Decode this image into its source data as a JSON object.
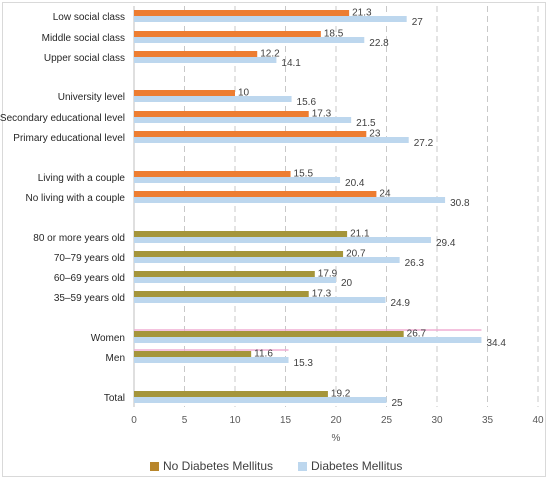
{
  "chart_data": {
    "type": "bar",
    "orientation": "horizontal",
    "xlabel": "%",
    "xlim": [
      0,
      40
    ],
    "xticks": [
      0,
      5,
      10,
      15,
      20,
      25,
      30,
      35,
      40
    ],
    "grid": "vertical dashed",
    "legend_position": "bottom",
    "categories": [
      "Low social class",
      "Middle social class",
      "Upper social class",
      "University level",
      "Secondary educational level",
      "Primary educational level",
      "Living with a couple",
      "No living with a couple",
      "80 or more years old",
      "70–79 years old",
      "60–69 years old",
      "35–59 years old",
      "Women",
      "Men",
      "Total"
    ],
    "series": [
      {
        "name": "No Diabetes Mellitus",
        "values": [
          21.3,
          18.5,
          12.2,
          10,
          17.3,
          23,
          15.5,
          24,
          21.1,
          20.7,
          17.9,
          17.3,
          26.7,
          11.6,
          19.2
        ]
      },
      {
        "name": "Diabetes Mellitus",
        "values": [
          27,
          22.8,
          14.1,
          15.6,
          21.5,
          27.2,
          20.4,
          30.8,
          29.4,
          26.3,
          20,
          24.9,
          34.4,
          15.3,
          25
        ]
      }
    ],
    "colors": {
      "social_education_living": {
        "no_dm": "#ed7d31",
        "dm": "#bdd7ee"
      },
      "age_total": {
        "no_dm": "#a5953a",
        "dm": "#bdd7ee"
      },
      "sex": {
        "no_dm": "#a5953a",
        "dm": "#bdd7ee",
        "stripe": "#f0a8d0"
      },
      "legend_no_dm": "#b8862b",
      "legend_dm": "#bdd7ee"
    }
  }
}
